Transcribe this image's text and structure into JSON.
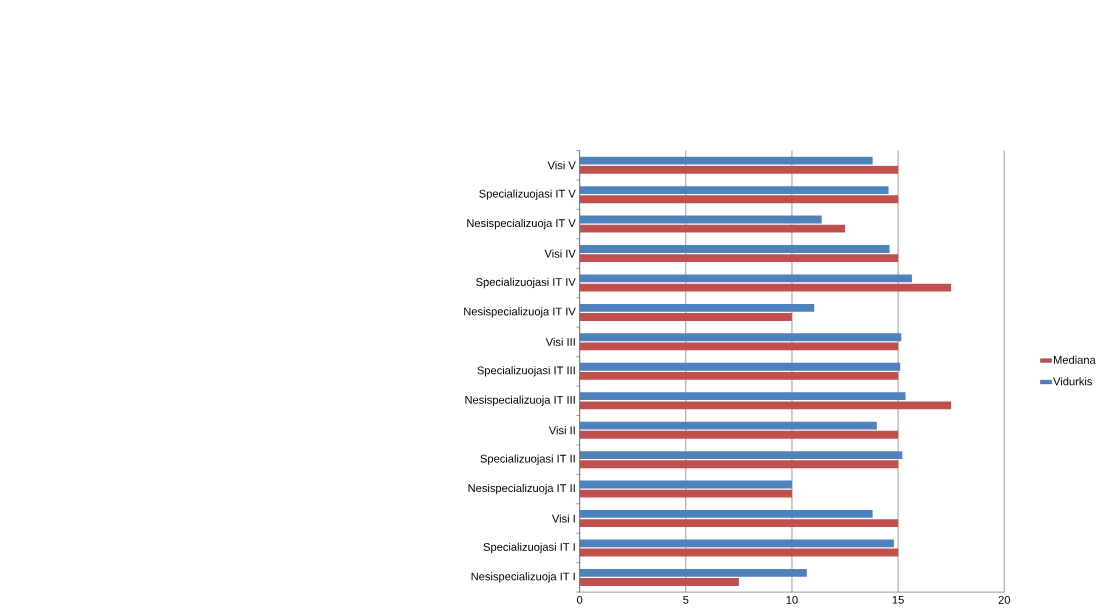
{
  "chart_data": {
    "type": "bar",
    "orientation": "horizontal",
    "categories": [
      "Visi V",
      "Specializuojasi IT V",
      "Nesispecializuoja IT V",
      "Visi IV",
      "Specializuojasi IT IV",
      "Nesispecializuoja IT IV",
      "Visi III",
      "Specializuojasi IT III",
      "Nesispecializuoja IT III",
      "Visi II",
      "Specializuojasi IT II",
      "Nesispecializuoja IT II",
      "Visi I",
      "Specializuojasi IT I",
      "Nesispecializuoja IT I"
    ],
    "series": [
      {
        "name": "Mediana",
        "color": "#c0504d",
        "values": [
          15,
          15,
          12.5,
          15,
          17.5,
          10,
          15,
          15,
          17.5,
          15,
          15,
          10,
          15,
          15,
          7.5
        ]
      },
      {
        "name": "Vidurkis",
        "color": "#4f81bd",
        "values": [
          13.8,
          14.55,
          11.4,
          14.6,
          15.65,
          11.05,
          15.15,
          15.1,
          15.35,
          14.0,
          15.2,
          10,
          13.8,
          14.8,
          10.7
        ]
      }
    ],
    "xlim": [
      0,
      20
    ],
    "xticks": [
      0,
      5,
      10,
      15,
      20
    ],
    "grid": "x",
    "legend": "right"
  }
}
